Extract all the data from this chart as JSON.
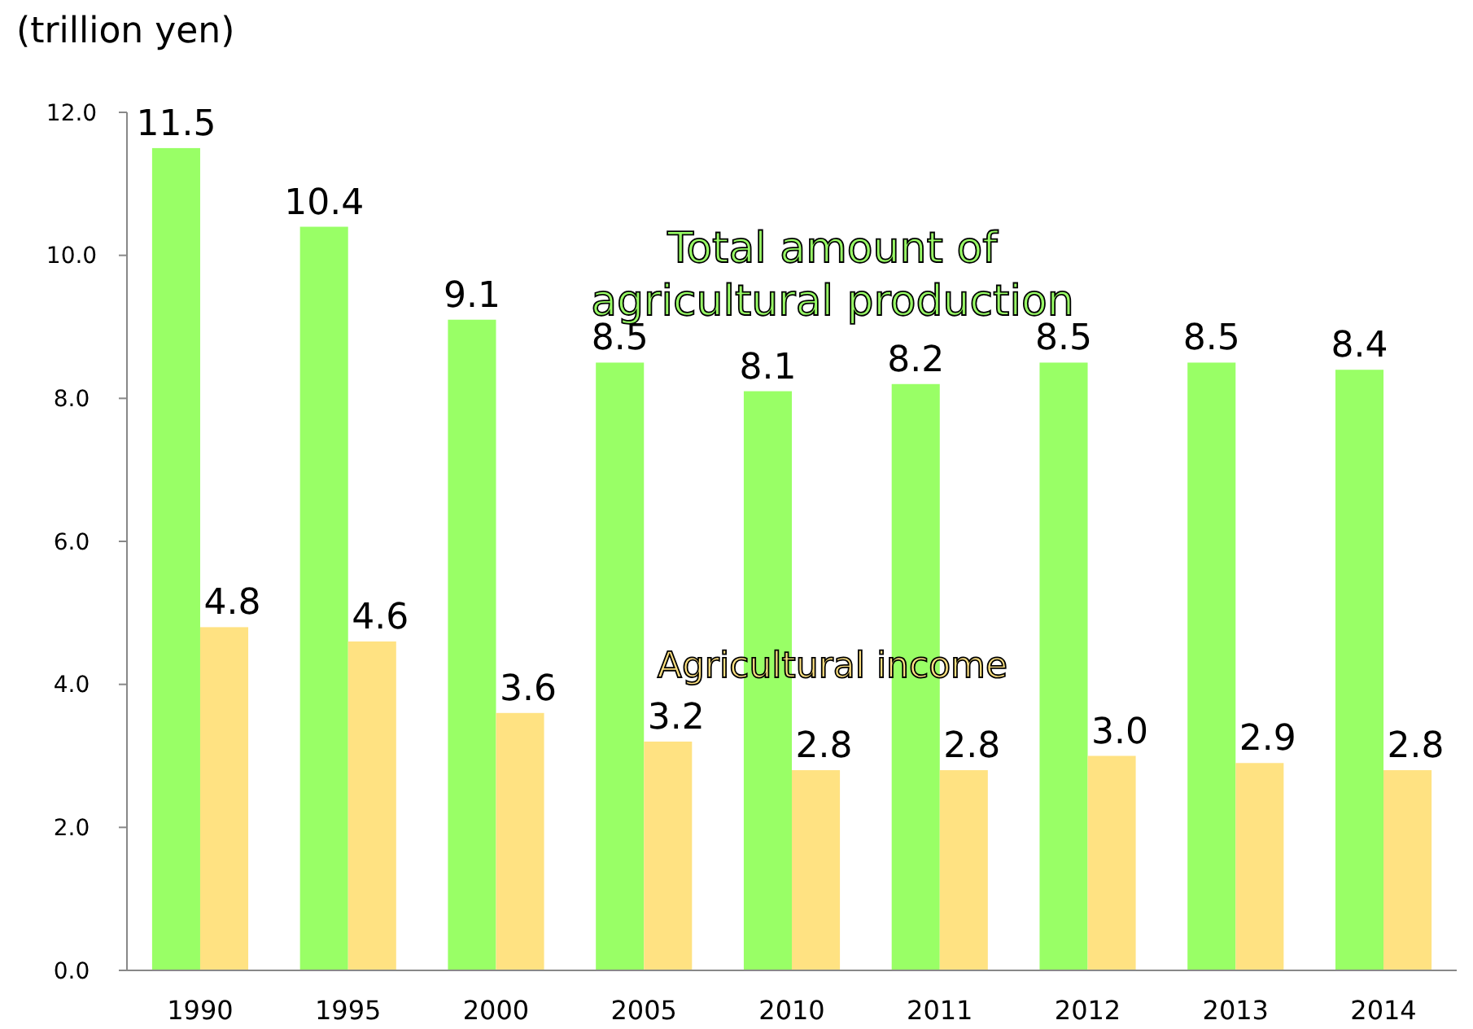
{
  "chart_data": {
    "type": "bar",
    "ylabel": "(trillion yen)",
    "categories": [
      "1990",
      "1995",
      "2000",
      "2005",
      "2010",
      "2011",
      "2012",
      "2013",
      "2014"
    ],
    "series": [
      {
        "name": "Total amount of agricultural production",
        "color": "#99ff66",
        "values": [
          11.5,
          10.4,
          9.1,
          8.5,
          8.1,
          8.2,
          8.5,
          8.5,
          8.4
        ],
        "value_labels": [
          "11.5",
          "10.4",
          "9.1",
          "8.5",
          "8.1",
          "8.2",
          "8.5",
          "8.5",
          "8.4"
        ]
      },
      {
        "name": "Agricultural income",
        "color": "#ffe282",
        "values": [
          4.8,
          4.6,
          3.6,
          3.2,
          2.8,
          2.8,
          3.0,
          2.9,
          2.8
        ],
        "value_labels": [
          "4.8",
          "4.6",
          "3.6",
          "3.2",
          "2.8",
          "2.8",
          "3.0",
          "2.9",
          "2.8"
        ]
      }
    ],
    "ylim": [
      0,
      12
    ],
    "yticks": [
      {
        "value": 0,
        "label": "0.0"
      },
      {
        "value": 2,
        "label": "2.0"
      },
      {
        "value": 4,
        "label": "4.0"
      },
      {
        "value": 6,
        "label": "6.0"
      },
      {
        "value": 8,
        "label": "8.0"
      },
      {
        "value": 10,
        "label": "10.0"
      },
      {
        "value": 12,
        "label": "12.0"
      }
    ],
    "grid": false,
    "legend": false
  }
}
